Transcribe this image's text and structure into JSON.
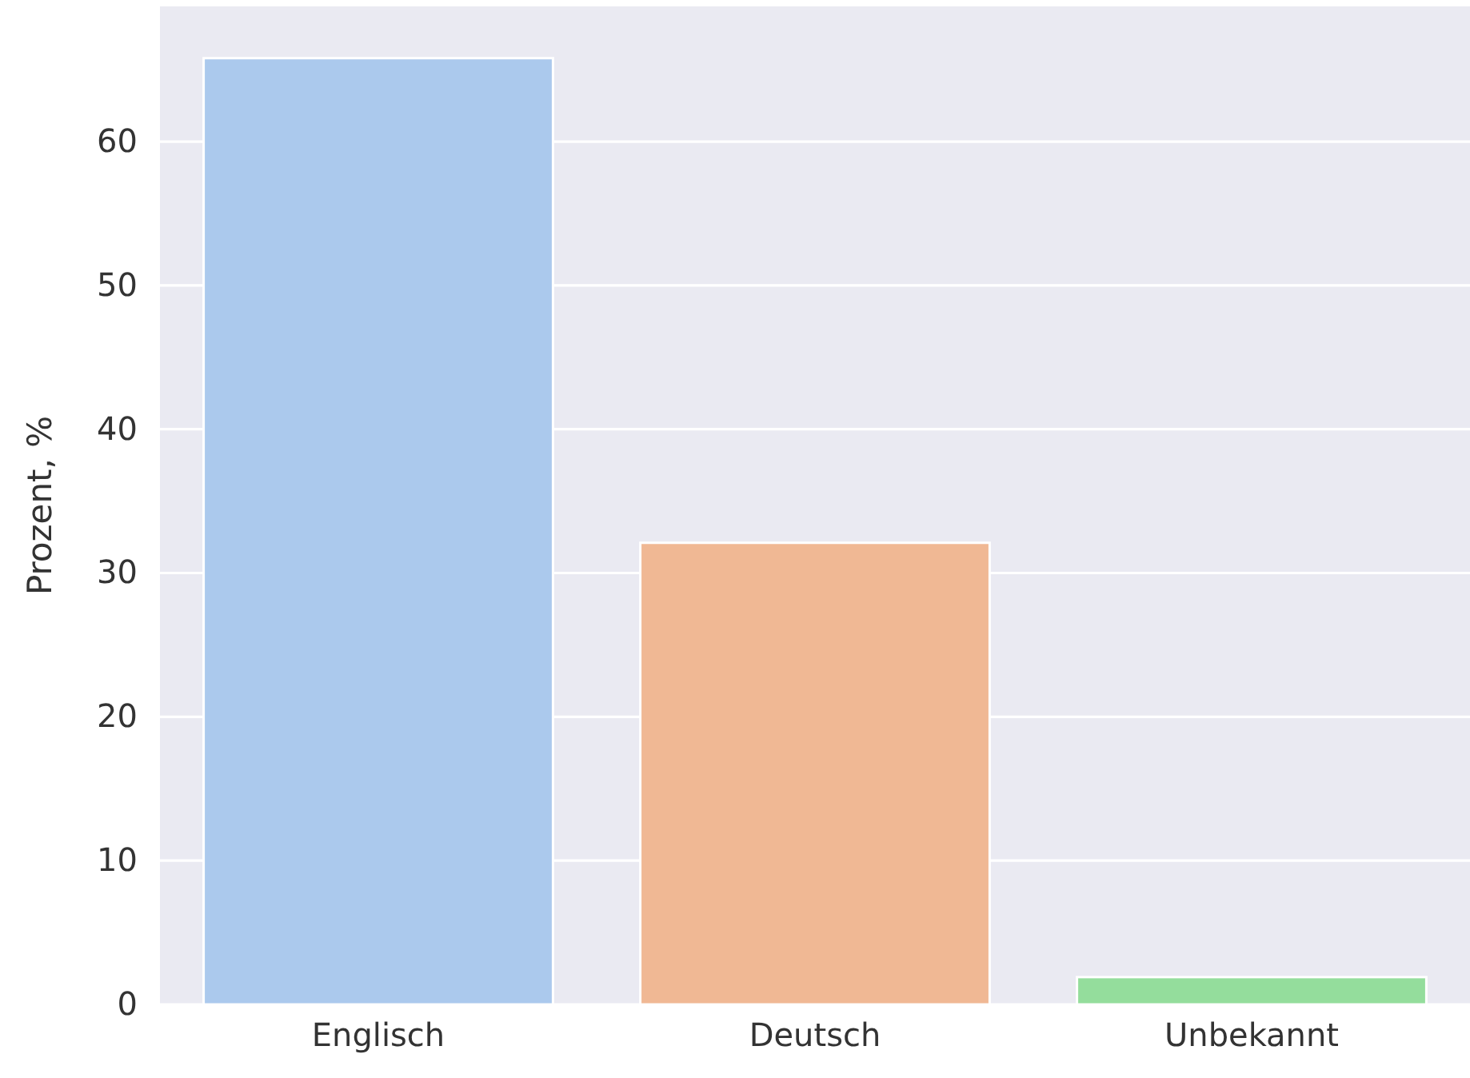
{
  "chart_data": {
    "type": "bar",
    "ylabel": "Prozent, %",
    "categories": [
      "Englisch",
      "Deutsch",
      "Unbekannt"
    ],
    "values": [
      65.8,
      32.1,
      1.9
    ],
    "colors": [
      "#abc9ed",
      "#f0b894",
      "#94dd9c"
    ],
    "ylim": [
      0,
      69.4
    ],
    "yticks": [
      0,
      10,
      20,
      30,
      40,
      50,
      60
    ],
    "grid": "y"
  }
}
